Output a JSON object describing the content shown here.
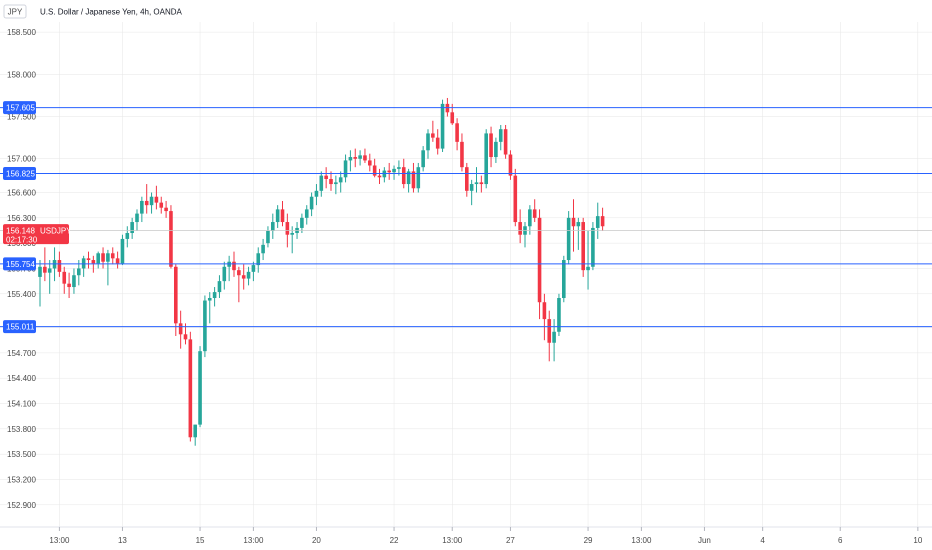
{
  "header": {
    "symbol_badge": "JPY",
    "title": "U.S. Dollar / Japanese Yen, 4h, OANDA"
  },
  "colors": {
    "up": "#26a69a",
    "down": "#f23645",
    "level_line": "#2962ff",
    "level_tag": "#2962ff",
    "price_tag": "#f23645",
    "grid": "#e6e6e6",
    "axis_text": "#4a4a4a"
  },
  "chart_data": {
    "type": "candlestick",
    "symbol": "USDJPY",
    "ylim": [
      152.72,
      158.62
    ],
    "y_ticks": [
      "158.500",
      "158.000",
      "157.500",
      "157.000",
      "156.600",
      "156.300",
      "156.000",
      "155.700",
      "155.400",
      "155.000",
      "154.700",
      "154.400",
      "154.100",
      "153.800",
      "153.500",
      "153.200",
      "152.900"
    ],
    "x_ticks": [
      {
        "label": "13:00",
        "index": 4
      },
      {
        "label": "13",
        "index": 17
      },
      {
        "label": "15",
        "index": 33
      },
      {
        "label": "13:00",
        "index": 44
      },
      {
        "label": "20",
        "index": 57
      },
      {
        "label": "22",
        "index": 73
      },
      {
        "label": "13:00",
        "index": 85
      },
      {
        "label": "27",
        "index": 97
      },
      {
        "label": "29",
        "index": 113
      },
      {
        "label": "13:00",
        "index": 124
      },
      {
        "label": "Jun",
        "index": 137
      },
      {
        "label": "4",
        "index": 149
      },
      {
        "label": "6",
        "index": 165
      },
      {
        "label": "10",
        "index": 181
      }
    ],
    "levels": [
      "157.605",
      "156.825",
      "155.754",
      "155.011"
    ],
    "current": {
      "price": "156.148",
      "label": "USDJPY",
      "countdown": "02:17:30"
    },
    "candles": [
      [
        155.6,
        155.8,
        155.25,
        155.72
      ],
      [
        155.72,
        155.95,
        155.55,
        155.65
      ],
      [
        155.65,
        155.8,
        155.4,
        155.7
      ],
      [
        155.7,
        155.95,
        155.55,
        155.8
      ],
      [
        155.8,
        155.9,
        155.6,
        155.66
      ],
      [
        155.66,
        155.72,
        155.4,
        155.52
      ],
      [
        155.52,
        155.65,
        155.35,
        155.48
      ],
      [
        155.48,
        155.7,
        155.4,
        155.62
      ],
      [
        155.62,
        155.8,
        155.5,
        155.7
      ],
      [
        155.7,
        155.85,
        155.6,
        155.82
      ],
      [
        155.82,
        155.9,
        155.7,
        155.8
      ],
      [
        155.8,
        155.85,
        155.65,
        155.76
      ],
      [
        155.76,
        155.9,
        155.7,
        155.88
      ],
      [
        155.88,
        155.95,
        155.7,
        155.78
      ],
      [
        155.78,
        155.92,
        155.5,
        155.88
      ],
      [
        155.88,
        155.95,
        155.75,
        155.82
      ],
      [
        155.82,
        155.9,
        155.7,
        155.76
      ],
      [
        155.76,
        156.1,
        155.74,
        156.05
      ],
      [
        156.05,
        156.2,
        155.95,
        156.12
      ],
      [
        156.12,
        156.3,
        156.05,
        156.25
      ],
      [
        156.25,
        156.4,
        156.15,
        156.35
      ],
      [
        156.35,
        156.55,
        156.25,
        156.5
      ],
      [
        156.5,
        156.7,
        156.35,
        156.45
      ],
      [
        156.45,
        156.6,
        156.35,
        156.55
      ],
      [
        156.55,
        156.68,
        156.4,
        156.48
      ],
      [
        156.48,
        156.55,
        156.35,
        156.42
      ],
      [
        156.42,
        156.5,
        156.3,
        156.38
      ],
      [
        156.38,
        156.45,
        155.7,
        155.72
      ],
      [
        155.72,
        155.75,
        154.9,
        155.05
      ],
      [
        155.05,
        155.2,
        154.75,
        154.92
      ],
      [
        154.92,
        155.05,
        154.8,
        154.86
      ],
      [
        154.86,
        154.95,
        153.65,
        153.7
      ],
      [
        153.7,
        153.85,
        153.6,
        153.85
      ],
      [
        153.85,
        154.78,
        153.82,
        154.72
      ],
      [
        154.72,
        155.38,
        154.65,
        155.32
      ],
      [
        155.32,
        155.42,
        155.05,
        155.35
      ],
      [
        155.35,
        155.48,
        155.25,
        155.42
      ],
      [
        155.42,
        155.62,
        155.35,
        155.55
      ],
      [
        155.55,
        155.78,
        155.45,
        155.72
      ],
      [
        155.72,
        155.85,
        155.55,
        155.78
      ],
      [
        155.78,
        155.9,
        155.6,
        155.68
      ],
      [
        155.68,
        155.72,
        155.3,
        155.62
      ],
      [
        155.62,
        155.75,
        155.45,
        155.58
      ],
      [
        155.58,
        155.72,
        155.5,
        155.66
      ],
      [
        155.66,
        155.78,
        155.55,
        155.74
      ],
      [
        155.74,
        155.95,
        155.65,
        155.88
      ],
      [
        155.88,
        156.05,
        155.8,
        155.98
      ],
      [
        156.0,
        156.2,
        155.95,
        156.15
      ],
      [
        156.15,
        156.35,
        156.05,
        156.25
      ],
      [
        156.25,
        156.45,
        156.18,
        156.4
      ],
      [
        156.4,
        156.5,
        156.2,
        156.25
      ],
      [
        156.25,
        156.35,
        155.95,
        156.1
      ],
      [
        156.1,
        156.2,
        155.88,
        156.12
      ],
      [
        156.12,
        156.25,
        156.05,
        156.18
      ],
      [
        156.18,
        156.35,
        156.12,
        156.3
      ],
      [
        156.3,
        156.45,
        156.22,
        156.4
      ],
      [
        156.4,
        156.6,
        156.32,
        156.55
      ],
      [
        156.55,
        156.7,
        156.45,
        156.62
      ],
      [
        156.62,
        156.85,
        156.55,
        156.8
      ],
      [
        156.8,
        156.9,
        156.65,
        156.76
      ],
      [
        156.76,
        156.85,
        156.62,
        156.7
      ],
      [
        156.7,
        156.8,
        156.58,
        156.72
      ],
      [
        156.72,
        156.85,
        156.6,
        156.78
      ],
      [
        156.78,
        157.05,
        156.72,
        156.98
      ],
      [
        156.98,
        157.1,
        156.85,
        157.02
      ],
      [
        157.02,
        157.12,
        156.9,
        157.0
      ],
      [
        157.0,
        157.1,
        156.92,
        157.04
      ],
      [
        157.04,
        157.12,
        156.95,
        156.98
      ],
      [
        156.98,
        157.06,
        156.85,
        156.92
      ],
      [
        156.92,
        157.0,
        156.78,
        156.8
      ],
      [
        156.8,
        156.88,
        156.7,
        156.78
      ],
      [
        156.78,
        156.9,
        156.72,
        156.86
      ],
      [
        156.86,
        156.95,
        156.75,
        156.84
      ],
      [
        156.84,
        156.92,
        156.75,
        156.88
      ],
      [
        156.88,
        156.98,
        156.8,
        156.9
      ],
      [
        156.9,
        157.0,
        156.65,
        156.7
      ],
      [
        156.7,
        156.88,
        156.6,
        156.85
      ],
      [
        156.85,
        156.95,
        156.6,
        156.65
      ],
      [
        156.65,
        156.95,
        156.6,
        156.9
      ],
      [
        156.9,
        157.15,
        156.85,
        157.1
      ],
      [
        157.1,
        157.35,
        157.0,
        157.3
      ],
      [
        157.3,
        157.45,
        157.2,
        157.25
      ],
      [
        157.25,
        157.35,
        157.05,
        157.12
      ],
      [
        157.12,
        157.7,
        157.08,
        157.65
      ],
      [
        157.65,
        157.72,
        157.5,
        157.55
      ],
      [
        157.55,
        157.65,
        157.4,
        157.42
      ],
      [
        157.42,
        157.48,
        157.1,
        157.2
      ],
      [
        157.2,
        157.3,
        156.85,
        156.9
      ],
      [
        156.9,
        156.95,
        156.55,
        156.62
      ],
      [
        156.62,
        156.75,
        156.45,
        156.7
      ],
      [
        156.7,
        156.9,
        156.6,
        156.72
      ],
      [
        156.72,
        156.8,
        156.6,
        156.7
      ],
      [
        156.7,
        157.35,
        156.65,
        157.3
      ],
      [
        157.3,
        157.38,
        156.9,
        157.02
      ],
      [
        157.02,
        157.25,
        156.95,
        157.2
      ],
      [
        157.2,
        157.4,
        157.1,
        157.35
      ],
      [
        157.35,
        157.4,
        157.0,
        157.05
      ],
      [
        157.05,
        157.1,
        156.75,
        156.8
      ],
      [
        156.8,
        156.88,
        156.2,
        156.25
      ],
      [
        156.25,
        156.4,
        156.0,
        156.1
      ],
      [
        156.1,
        156.25,
        155.95,
        156.2
      ],
      [
        156.2,
        156.45,
        156.1,
        156.4
      ],
      [
        156.4,
        156.52,
        156.25,
        156.3
      ],
      [
        156.3,
        156.4,
        155.1,
        155.3
      ],
      [
        155.3,
        155.4,
        154.85,
        155.1
      ],
      [
        155.1,
        155.2,
        154.6,
        154.82
      ],
      [
        154.82,
        155.1,
        154.6,
        154.95
      ],
      [
        154.95,
        155.4,
        154.9,
        155.35
      ],
      [
        155.35,
        155.85,
        155.3,
        155.8
      ],
      [
        155.8,
        156.38,
        155.75,
        156.3
      ],
      [
        156.3,
        156.52,
        155.9,
        156.2
      ],
      [
        156.2,
        156.3,
        155.92,
        156.25
      ],
      [
        156.25,
        156.3,
        155.6,
        155.68
      ],
      [
        155.68,
        156.15,
        155.45,
        155.72
      ],
      [
        155.72,
        156.25,
        155.68,
        156.18
      ],
      [
        156.18,
        156.48,
        156.05,
        156.32
      ],
      [
        156.32,
        156.42,
        156.15,
        156.2
      ]
    ]
  }
}
